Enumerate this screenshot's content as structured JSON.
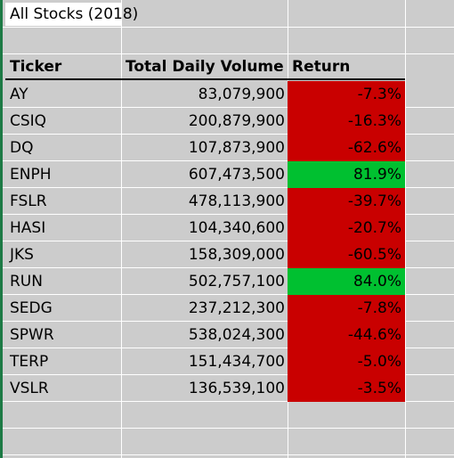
{
  "sheet": {
    "title": "All Stocks (2018)",
    "headers": {
      "ticker": "Ticker",
      "volume": "Total Daily Volume",
      "return": "Return"
    },
    "colors": {
      "negative": "#c90000",
      "positive": "#00c030",
      "grid_background": "#cccccc",
      "grid_lines": "#ffffff",
      "frame_stripe": "#1d7a45"
    },
    "rows": [
      {
        "ticker": "AY",
        "volume": "83,079,900",
        "return": "-7.3%",
        "sign": "negative"
      },
      {
        "ticker": "CSIQ",
        "volume": "200,879,900",
        "return": "-16.3%",
        "sign": "negative"
      },
      {
        "ticker": "DQ",
        "volume": "107,873,900",
        "return": "-62.6%",
        "sign": "negative"
      },
      {
        "ticker": "ENPH",
        "volume": "607,473,500",
        "return": "81.9%",
        "sign": "positive"
      },
      {
        "ticker": "FSLR",
        "volume": "478,113,900",
        "return": "-39.7%",
        "sign": "negative"
      },
      {
        "ticker": "HASI",
        "volume": "104,340,600",
        "return": "-20.7%",
        "sign": "negative"
      },
      {
        "ticker": "JKS",
        "volume": "158,309,000",
        "return": "-60.5%",
        "sign": "negative"
      },
      {
        "ticker": "RUN",
        "volume": "502,757,100",
        "return": "84.0%",
        "sign": "positive"
      },
      {
        "ticker": "SEDG",
        "volume": "237,212,300",
        "return": "-7.8%",
        "sign": "negative"
      },
      {
        "ticker": "SPWR",
        "volume": "538,024,300",
        "return": "-44.6%",
        "sign": "negative"
      },
      {
        "ticker": "TERP",
        "volume": "151,434,700",
        "return": "-5.0%",
        "sign": "negative"
      },
      {
        "ticker": "VSLR",
        "volume": "136,539,100",
        "return": "-3.5%",
        "sign": "negative"
      }
    ]
  }
}
